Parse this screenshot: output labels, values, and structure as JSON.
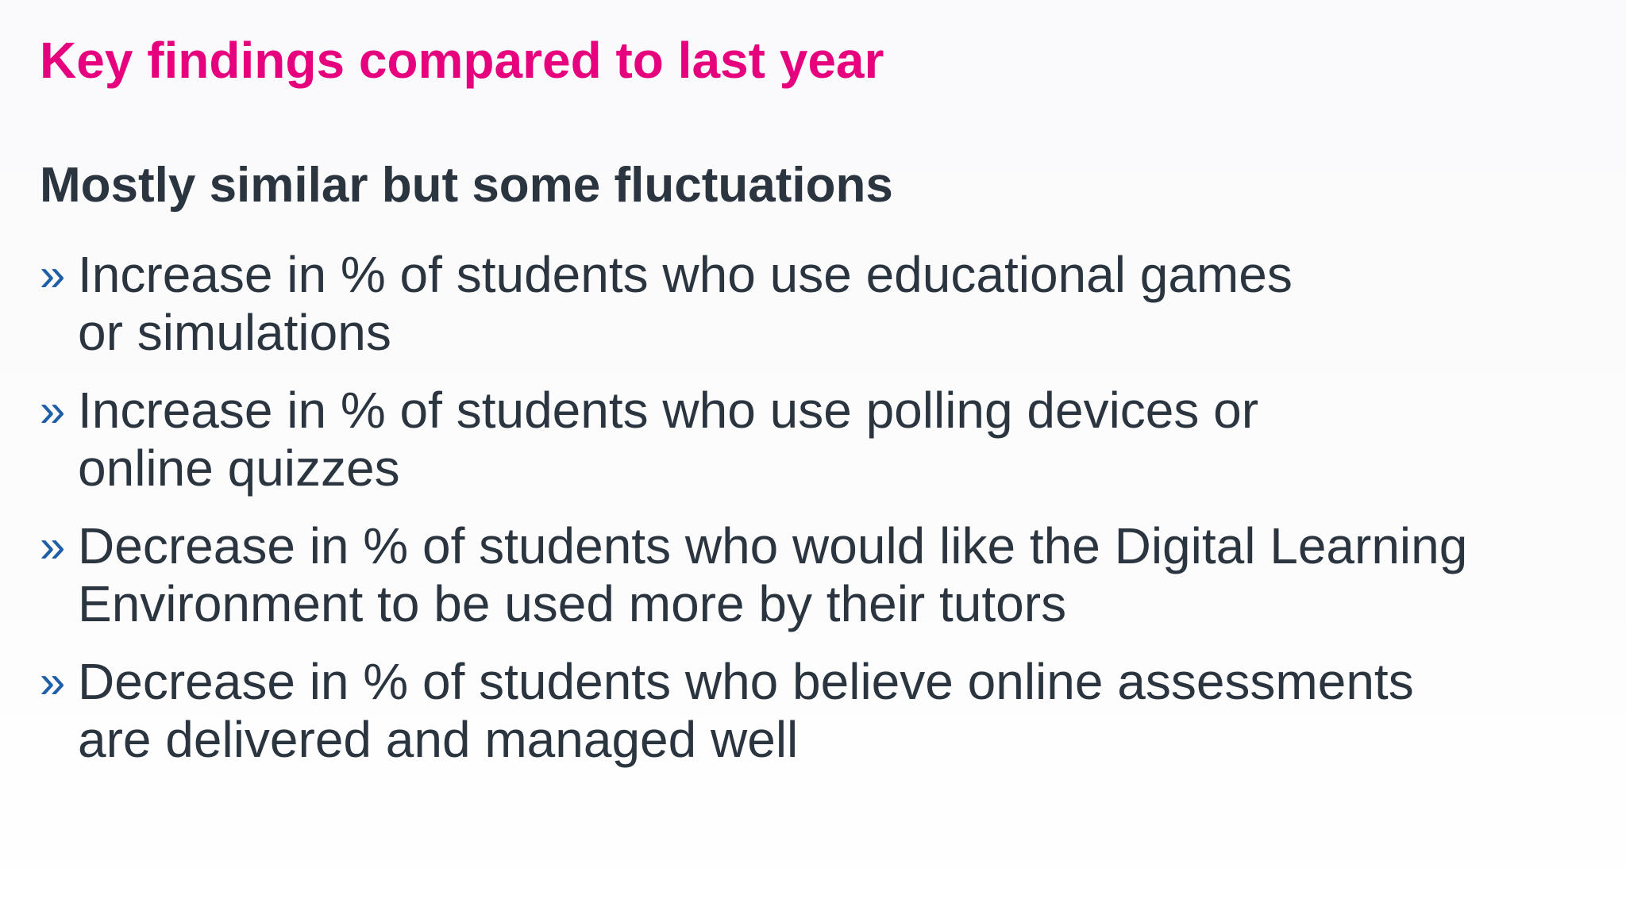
{
  "slide": {
    "title": "Key findings compared to last year",
    "subtitle": "Mostly similar but some fluctuations",
    "bullet_marker": "»",
    "bullets": [
      "Increase in % of students who use educational games\nor simulations",
      "Increase in % of students who use polling devices or\nonline quizzes",
      "Decrease in % of students who would like the Digital Learning\nEnvironment to be used more by their tutors",
      "Decrease in % of students who believe online assessments\nare delivered and managed well"
    ]
  },
  "colors": {
    "title": "#e6007e",
    "text": "#2b3540",
    "bullet_marker": "#1f5fa8"
  }
}
